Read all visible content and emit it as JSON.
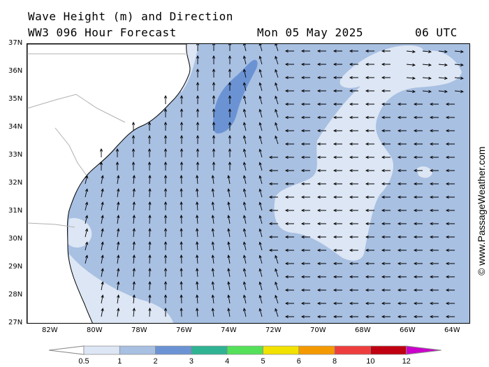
{
  "header": {
    "title": "Wave Height (m) and Direction",
    "model": "WW3 096 Hour Forecast",
    "date": "Mon 05 May 2025",
    "time": "06 UTC"
  },
  "watermark": "© www.PassageWeather.com",
  "map": {
    "region": "US Southeast Atlantic coast",
    "lon_labels": [
      "82W",
      "80W",
      "78W",
      "76W",
      "74W",
      "72W",
      "70W",
      "68W",
      "66W",
      "64W"
    ],
    "lat_labels": [
      "37N",
      "36N",
      "35N",
      "34N",
      "33N",
      "32N",
      "31N",
      "30N",
      "29N",
      "28N",
      "27N"
    ],
    "wave_direction": "predominantly from the south in the west, from the east in the central and eastern areas",
    "max_wave_zone": {
      "range_m": "2-3",
      "location": "near 74W 34-36N"
    }
  },
  "legend": {
    "labels": [
      "0.5",
      "1",
      "2",
      "3",
      "4",
      "5",
      "6",
      "8",
      "10",
      "12"
    ],
    "colors": [
      "#dde6f4",
      "#a8c0e2",
      "#6b93d4",
      "#2fb393",
      "#55e05a",
      "#f2e200",
      "#f49a00",
      "#ee3d3d",
      "#c00010",
      "#cc00cc"
    ]
  }
}
